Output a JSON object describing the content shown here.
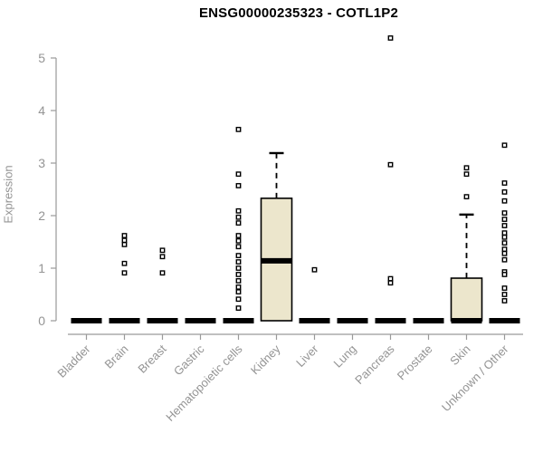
{
  "title": "ENSG00000235323 - COTL1P2",
  "colors": {
    "background": "#ffffff",
    "box_fill": "#ece6cc",
    "box_stroke": "#000000",
    "median": "#000000",
    "outlier_stroke": "#000000",
    "outlier_fill": "#ffffff",
    "axis_line": "#9a9a9a",
    "axis_text": "#949494",
    "title_text": "#000000"
  },
  "chart_data": {
    "type": "boxplot",
    "title": "ENSG00000235323 - COTL1P2",
    "xlabel": "",
    "ylabel": "Expression",
    "ylim": [
      0,
      5
    ],
    "yticks": [
      0,
      1,
      2,
      3,
      4,
      5
    ],
    "grid": false,
    "legend": "none",
    "categories": [
      "Bladder",
      "Brain",
      "Breast",
      "Gastric",
      "Hematopoietic cells",
      "Kidney",
      "Liver",
      "Lung",
      "Pancreas",
      "Prostate",
      "Skin",
      "Unknown / Other"
    ],
    "boxes": [
      {
        "category": "Bladder",
        "low": 0,
        "q1": 0,
        "median": 0,
        "q3": 0,
        "high": 0,
        "outliers": []
      },
      {
        "category": "Brain",
        "low": 0,
        "q1": 0,
        "median": 0,
        "q3": 0,
        "high": 0,
        "outliers": [
          1.62,
          1.53,
          1.45,
          1.09,
          0.91
        ]
      },
      {
        "category": "Breast",
        "low": 0,
        "q1": 0,
        "median": 0,
        "q3": 0,
        "high": 0,
        "outliers": [
          1.34,
          1.22,
          0.91
        ]
      },
      {
        "category": "Gastric",
        "low": 0,
        "q1": 0,
        "median": 0,
        "q3": 0,
        "high": 0,
        "outliers": []
      },
      {
        "category": "Hematopoietic cells",
        "low": 0,
        "q1": 0,
        "median": 0,
        "q3": 0,
        "high": 0,
        "outliers": [
          3.64,
          2.79,
          2.57,
          2.09,
          1.97,
          1.86,
          1.62,
          1.52,
          1.41,
          1.24,
          1.12,
          1.0,
          0.88,
          0.76,
          0.64,
          0.55,
          0.41,
          0.24
        ]
      },
      {
        "category": "Kidney",
        "low": 0,
        "q1": 0,
        "median": 1.14,
        "q3": 2.33,
        "high": 3.19,
        "outliers": []
      },
      {
        "category": "Liver",
        "low": 0,
        "q1": 0,
        "median": 0,
        "q3": 0,
        "high": 0,
        "outliers": [
          0.97
        ]
      },
      {
        "category": "Lung",
        "low": 0,
        "q1": 0,
        "median": 0,
        "q3": 0,
        "high": 0,
        "outliers": []
      },
      {
        "category": "Pancreas",
        "low": 0,
        "q1": 0,
        "median": 0,
        "q3": 0,
        "high": 0,
        "outliers": [
          5.38,
          2.97,
          0.8,
          0.72
        ]
      },
      {
        "category": "Prostate",
        "low": 0,
        "q1": 0,
        "median": 0,
        "q3": 0,
        "high": 0,
        "outliers": []
      },
      {
        "category": "Skin",
        "low": 0,
        "q1": 0,
        "median": 0,
        "q3": 0.81,
        "high": 2.02,
        "outliers": [
          2.91,
          2.79,
          2.36
        ]
      },
      {
        "category": "Unknown / Other",
        "low": 0,
        "q1": 0,
        "median": 0,
        "q3": 0,
        "high": 0,
        "outliers": [
          3.34,
          2.62,
          2.45,
          2.28,
          2.05,
          1.93,
          1.81,
          1.67,
          1.59,
          1.48,
          1.36,
          1.28,
          1.16,
          0.93,
          0.88,
          0.62,
          0.5,
          0.38
        ]
      }
    ]
  }
}
